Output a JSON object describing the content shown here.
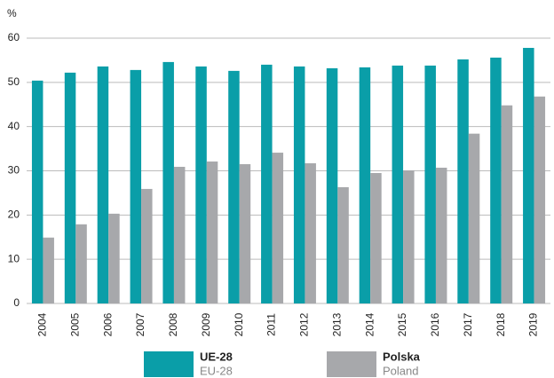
{
  "chart_data": {
    "type": "bar",
    "y_label": "%",
    "categories": [
      "2004",
      "2005",
      "2006",
      "2007",
      "2008",
      "2009",
      "2010",
      "2011",
      "2012",
      "2013",
      "2014",
      "2015",
      "2016",
      "2017",
      "2018",
      "2019"
    ],
    "series": [
      {
        "name": "UE-28",
        "name_en": "EU-28",
        "color": "#0a9ea8",
        "values": [
          50.4,
          52.2,
          53.6,
          52.8,
          54.6,
          53.6,
          52.6,
          54.0,
          53.6,
          53.2,
          53.4,
          53.8,
          53.8,
          55.2,
          55.6,
          57.8
        ]
      },
      {
        "name": "Polska",
        "name_en": "Poland",
        "color": "#a7a8ab",
        "values": [
          14.9,
          17.9,
          20.3,
          25.9,
          30.9,
          32.1,
          31.5,
          34.1,
          31.7,
          26.3,
          29.5,
          30.1,
          30.7,
          38.4,
          44.8,
          46.8
        ]
      }
    ],
    "ylim": [
      0,
      60
    ],
    "yticks": [
      0,
      10,
      20,
      30,
      40,
      50,
      60
    ],
    "grid": true
  }
}
